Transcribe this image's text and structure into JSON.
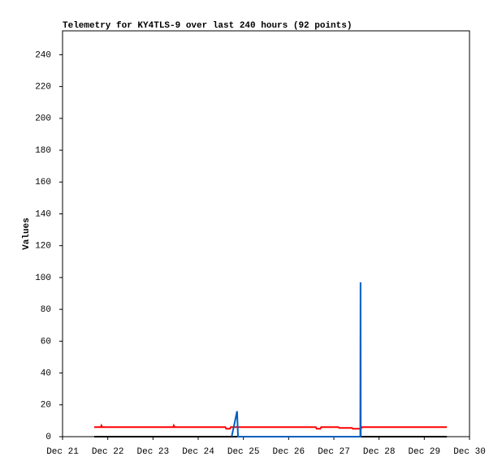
{
  "chart_data": {
    "type": "line",
    "title": "Telemetry for KY4TLS-9 over last 240 hours (92 points)",
    "y_label": "Values",
    "xlim": [
      21,
      30
    ],
    "ylim": [
      0,
      255
    ],
    "xticks": [
      {
        "value": 21,
        "label": "Dec 21"
      },
      {
        "value": 22,
        "label": "Dec 22"
      },
      {
        "value": 23,
        "label": "Dec 23"
      },
      {
        "value": 24,
        "label": "Dec 24"
      },
      {
        "value": 25,
        "label": "Dec 25"
      },
      {
        "value": 26,
        "label": "Dec 26"
      },
      {
        "value": 27,
        "label": "Dec 27"
      },
      {
        "value": 28,
        "label": "Dec 28"
      },
      {
        "value": 29,
        "label": "Dec 29"
      },
      {
        "value": 30,
        "label": "Dec 30"
      }
    ],
    "yticks": [
      0,
      20,
      40,
      60,
      80,
      100,
      120,
      140,
      160,
      180,
      200,
      220,
      240
    ],
    "series": [
      {
        "color": "#000000",
        "x": [
          21.7,
          29.5
        ],
        "values": [
          0,
          0
        ]
      },
      {
        "color": "#ff0000",
        "x": [
          21.7,
          21.85,
          21.86,
          21.88,
          23.45,
          23.46,
          23.48,
          24.6,
          24.62,
          24.7,
          24.72,
          26.6,
          26.62,
          26.7,
          26.72,
          27.1,
          27.12,
          27.4,
          27.42,
          27.6,
          27.62,
          29.5
        ],
        "values": [
          6,
          6,
          7,
          6,
          6,
          7,
          6,
          6,
          5,
          5,
          6,
          6,
          5,
          5,
          6,
          6,
          5.5,
          5.5,
          5,
          5,
          6,
          6
        ]
      },
      {
        "color": "#0060c0",
        "x": [
          24.74,
          24.86,
          24.88,
          27.585,
          27.59,
          27.595
        ],
        "values": [
          0,
          16,
          0,
          0,
          97,
          0
        ]
      }
    ]
  }
}
